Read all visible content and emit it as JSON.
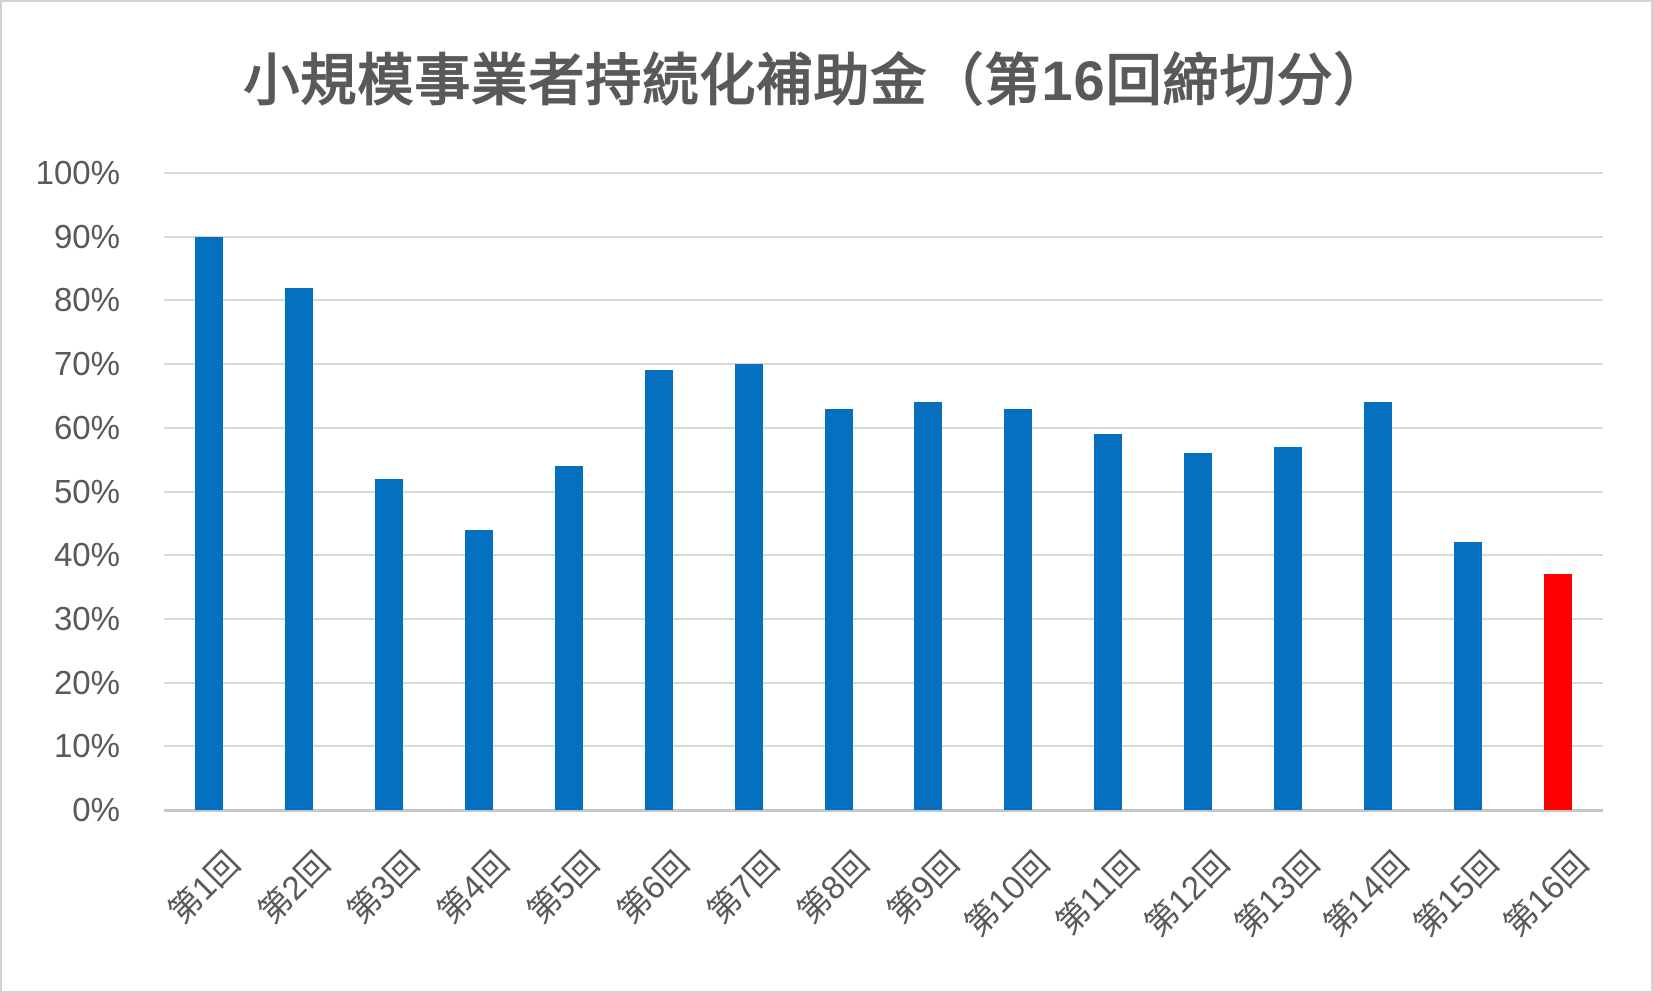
{
  "chart_data": {
    "type": "bar",
    "title": "小規模事業者持続化補助金（第16回締切分）",
    "categories": [
      "第1回",
      "第2回",
      "第3回",
      "第4回",
      "第5回",
      "第6回",
      "第7回",
      "第8回",
      "第9回",
      "第10回",
      "第11回",
      "第12回",
      "第13回",
      "第14回",
      "第15回",
      "第16回"
    ],
    "values": [
      90,
      82,
      52,
      44,
      54,
      69,
      70,
      63,
      64,
      63,
      59,
      56,
      57,
      64,
      42,
      37
    ],
    "unit": "%",
    "xlabel": "",
    "ylabel": "",
    "ylim": [
      0,
      100
    ],
    "ytick_values": [
      0,
      10,
      20,
      30,
      40,
      50,
      60,
      70,
      80,
      90,
      100
    ],
    "ytick_labels": [
      "0%",
      "10%",
      "20%",
      "30%",
      "40%",
      "50%",
      "60%",
      "70%",
      "80%",
      "90%",
      "100%"
    ],
    "grid": true,
    "legend": "none",
    "x_label_rotation_deg": 45,
    "highlight_index": 15,
    "colors": {
      "bar": "#0570C0",
      "highlight_bar": "#FF0000",
      "gridline": "#D9D9D9",
      "axis_line": "#C6C6C6",
      "text": "#595959",
      "background": "#FFFFFF",
      "frame_border": "#D2D2D2"
    }
  }
}
